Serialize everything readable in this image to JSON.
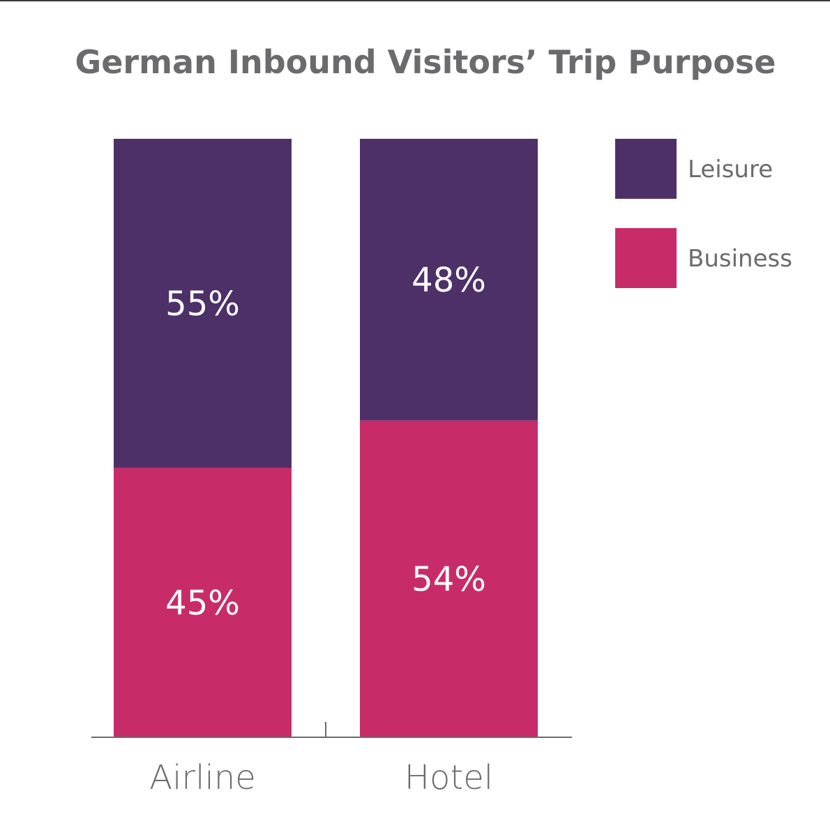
{
  "chart_data": {
    "type": "bar",
    "stacked": true,
    "title": "German Inbound Visitors’ Trip Purpose",
    "categories": [
      "Airline",
      "Hotel"
    ],
    "series": [
      {
        "name": "Business",
        "values": [
          45,
          54
        ],
        "labels": [
          "45%",
          "54%"
        ],
        "color": "#c72c69"
      },
      {
        "name": "Leisure",
        "values": [
          55,
          48
        ],
        "labels": [
          "55%",
          "48%"
        ],
        "color": "#4d3068"
      }
    ],
    "legend_position": "top-right",
    "legend_order": [
      "Leisure",
      "Business"
    ],
    "grid": false,
    "value_axis_visible": false
  }
}
